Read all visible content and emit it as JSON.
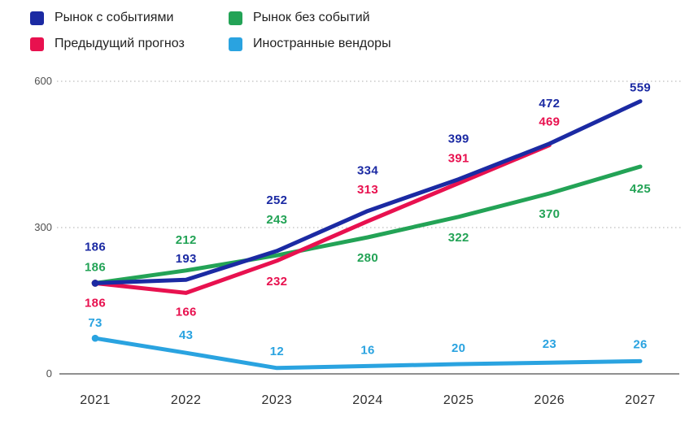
{
  "legend": {
    "items": [
      {
        "label": "Рынок с событиями",
        "color": "#1b2aa3"
      },
      {
        "label": "Рынок без событий",
        "color": "#23a356"
      },
      {
        "label": "Предыдущий прогноз",
        "color": "#e8114f"
      },
      {
        "label": "Иностранные вендоры",
        "color": "#2aa3e0"
      }
    ]
  },
  "chart_data": {
    "type": "line",
    "x": [
      "2021",
      "2022",
      "2023",
      "2024",
      "2025",
      "2026",
      "2027"
    ],
    "series": [
      {
        "name": "Рынок с событиями",
        "color": "#1b2aa3",
        "values": [
          186,
          193,
          252,
          334,
          399,
          472,
          559
        ]
      },
      {
        "name": "Рынок без событий",
        "color": "#23a356",
        "values": [
          186,
          212,
          243,
          280,
          322,
          370,
          425
        ]
      },
      {
        "name": "Предыдущий прогноз",
        "color": "#e8114f",
        "values": [
          186,
          166,
          232,
          313,
          391,
          469,
          null
        ]
      },
      {
        "name": "Иностранные вендоры",
        "color": "#2aa3e0",
        "values": [
          73,
          43,
          12,
          16,
          20,
          23,
          26
        ]
      }
    ],
    "ylim": [
      0,
      600
    ],
    "yticks": [
      600,
      300,
      0
    ],
    "ytick_labels": [
      "600",
      "300",
      "0"
    ],
    "grid": "horizontal-dotted-at-300-and-600",
    "axis_line": "solid-at-0",
    "legend_position": "top-left-two-columns",
    "point_labels": "shown-for-every-point-in-series-color"
  }
}
